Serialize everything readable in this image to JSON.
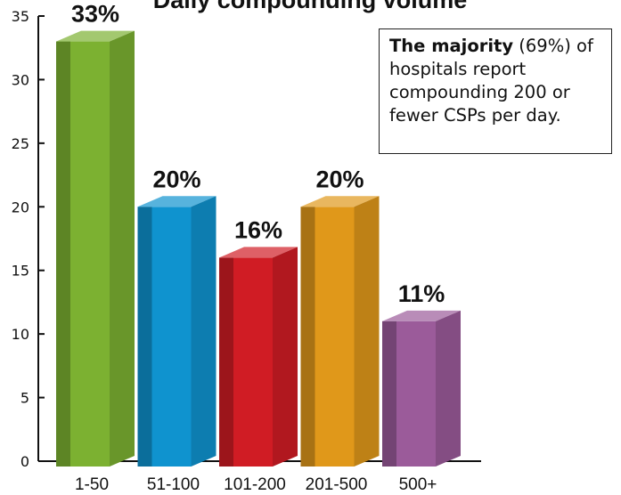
{
  "chart_data": {
    "type": "bar",
    "title": "Daily compounding volume",
    "categories": [
      "1-50",
      "51-100",
      "101-200",
      "201-500",
      "500+"
    ],
    "values": [
      33,
      20,
      16,
      20,
      11
    ],
    "data_labels": [
      "33%",
      "20%",
      "16%",
      "20%",
      "11%"
    ],
    "colors": [
      "#7cb131",
      "#0f93cf",
      "#d01c24",
      "#e0981a",
      "#9b5b9a"
    ],
    "ylim": [
      0,
      35
    ],
    "yticks": [
      0,
      5,
      10,
      15,
      20,
      25,
      30,
      35
    ],
    "xlabel": "",
    "ylabel": "",
    "grid": false,
    "legend": "none"
  },
  "callout": {
    "bold": "The majority",
    "text": " (69%) of hospitals report compounding 200 or fewer CSPs per day."
  }
}
